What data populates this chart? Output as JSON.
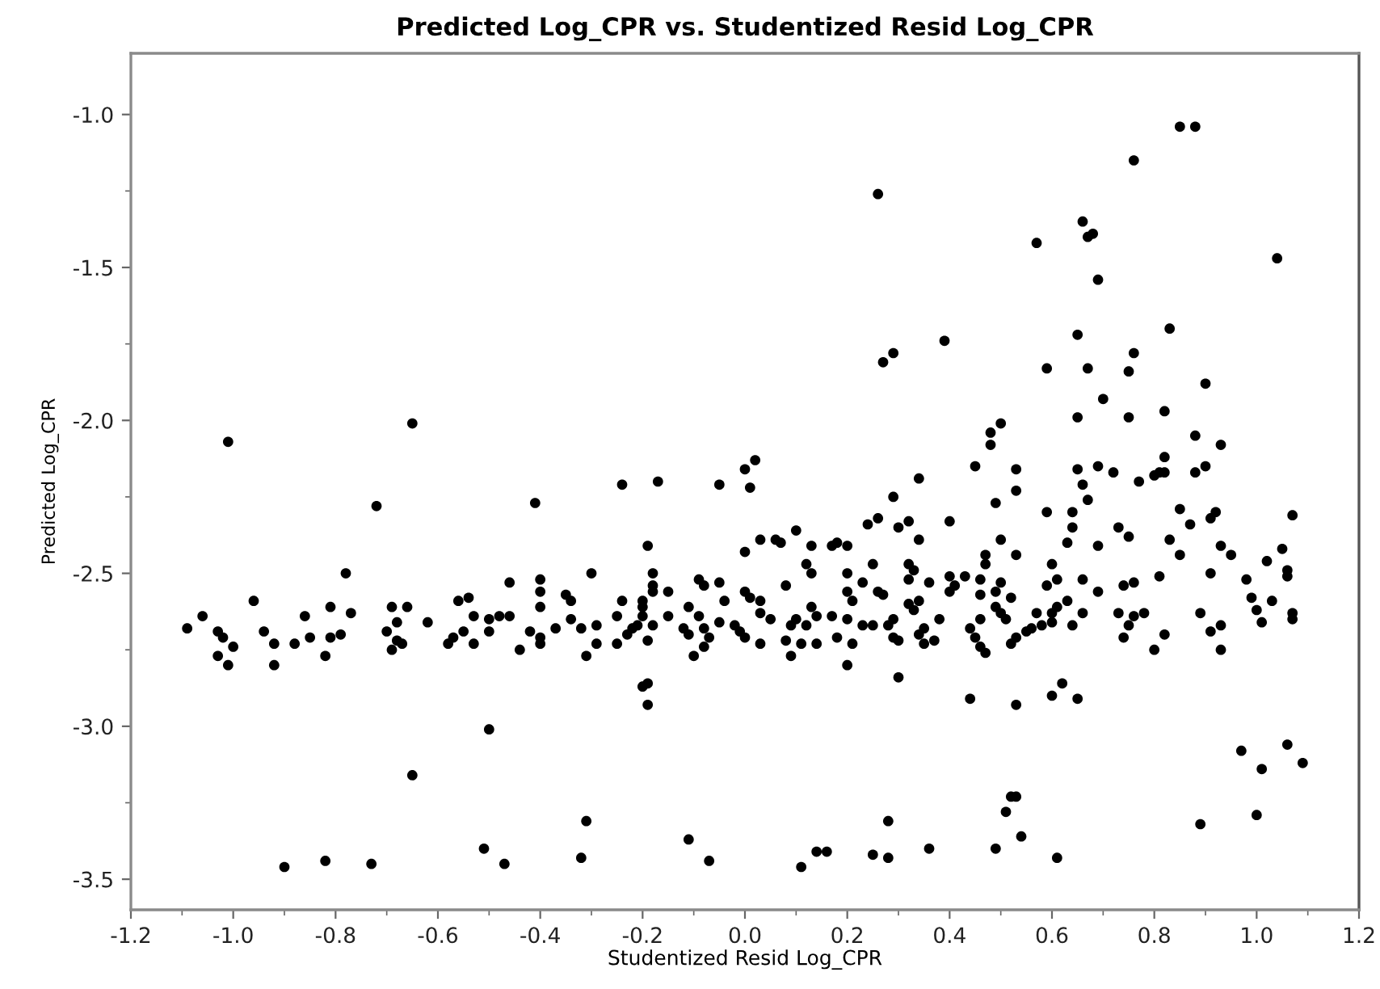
{
  "chart_data": {
    "type": "scatter",
    "title": "Predicted Log_CPR vs. Studentized Resid Log_CPR",
    "xlabel": "Studentized Resid Log_CPR",
    "ylabel": "Predicted Log_CPR",
    "color": "#000000",
    "marker": "circle",
    "xlim": [
      -1.2,
      1.2
    ],
    "ylim": [
      -3.6,
      -0.8
    ],
    "xticks": [
      {
        "value": -1.2,
        "label": "-1.2"
      },
      {
        "value": -1.1,
        "label": null
      },
      {
        "value": -1.0,
        "label": "-1.0"
      },
      {
        "value": -0.9,
        "label": null
      },
      {
        "value": -0.8,
        "label": "-0.8"
      },
      {
        "value": -0.7,
        "label": null
      },
      {
        "value": -0.6,
        "label": "-0.6"
      },
      {
        "value": -0.5,
        "label": null
      },
      {
        "value": -0.4,
        "label": "-0.4"
      },
      {
        "value": -0.3,
        "label": null
      },
      {
        "value": -0.2,
        "label": "-0.2"
      },
      {
        "value": -0.1,
        "label": null
      },
      {
        "value": 0.0,
        "label": "0.0"
      },
      {
        "value": 0.1,
        "label": null
      },
      {
        "value": 0.2,
        "label": "0.2"
      },
      {
        "value": 0.3,
        "label": null
      },
      {
        "value": 0.4,
        "label": "0.4"
      },
      {
        "value": 0.5,
        "label": null
      },
      {
        "value": 0.6,
        "label": "0.6"
      },
      {
        "value": 0.7,
        "label": null
      },
      {
        "value": 0.8,
        "label": "0.8"
      },
      {
        "value": 0.9,
        "label": null
      },
      {
        "value": 1.0,
        "label": "1.0"
      },
      {
        "value": 1.1,
        "label": null
      },
      {
        "value": 1.2,
        "label": "1.2"
      }
    ],
    "yticks": [
      {
        "value": -3.5,
        "label": "-3.5"
      },
      {
        "value": -3.25,
        "label": null
      },
      {
        "value": -3.0,
        "label": "-3.0"
      },
      {
        "value": -2.75,
        "label": null
      },
      {
        "value": -2.5,
        "label": "-2.5"
      },
      {
        "value": -2.25,
        "label": null
      },
      {
        "value": -2.0,
        "label": "-2.0"
      },
      {
        "value": -1.75,
        "label": null
      },
      {
        "value": -1.5,
        "label": "-1.5"
      },
      {
        "value": -1.25,
        "label": null
      },
      {
        "value": -1.0,
        "label": "-1.0"
      }
    ],
    "x": [
      -1.01,
      -0.65,
      -0.72,
      -0.78,
      -0.96,
      -1.09,
      -1.06,
      -1.03,
      -1.02,
      -1.0,
      -1.03,
      -1.01,
      -0.94,
      -0.92,
      -0.92,
      -0.88,
      -0.86,
      -0.85,
      -0.81,
      -0.81,
      -0.82,
      -0.79,
      -0.77,
      -0.69,
      -0.66,
      -0.68,
      -0.7,
      -0.68,
      -0.69,
      -0.67,
      -0.62,
      -0.58,
      -0.57,
      -0.56,
      -0.54,
      -0.55,
      -0.53,
      -0.53,
      -0.5,
      -0.5,
      -0.48,
      -0.46,
      -0.46,
      -0.5,
      -0.65,
      -0.9,
      -0.82,
      -0.73,
      -0.51,
      -0.47,
      0.26,
      0.27,
      0.29,
      -0.41,
      -0.24,
      -0.17,
      -0.05,
      0.0,
      0.02,
      0.01,
      0.29,
      0.26,
      0.24,
      0.3,
      0.1,
      0.03,
      0.06,
      0.07,
      0.0,
      0.13,
      0.17,
      0.18,
      0.2,
      -0.19,
      0.25,
      0.12,
      0.13,
      0.08,
      -0.18,
      -0.18,
      -0.3,
      -0.4,
      -0.4,
      -0.35,
      -0.34,
      -0.4,
      -0.42,
      -0.4,
      -0.4,
      -0.37,
      -0.44,
      -0.34,
      -0.32,
      -0.29,
      -0.29,
      -0.31,
      -0.25,
      -0.24,
      -0.25,
      -0.23,
      -0.22,
      -0.2,
      -0.2,
      -0.2,
      -0.19,
      -0.18,
      -0.18,
      -0.15,
      -0.15,
      -0.12,
      -0.11,
      -0.11,
      -0.1,
      -0.09,
      -0.08,
      -0.09,
      -0.08,
      -0.08,
      -0.07,
      -0.05,
      -0.05,
      -0.04,
      -0.02,
      -0.01,
      0.0,
      0.0,
      0.01,
      0.03,
      0.03,
      0.03,
      0.05,
      0.09,
      0.08,
      0.09,
      0.1,
      0.11,
      0.13,
      0.14,
      0.14,
      0.12,
      0.17,
      0.18,
      0.2,
      0.2,
      0.2,
      0.21,
      0.21,
      0.2,
      0.23,
      0.23,
      0.25,
      0.26,
      0.27,
      0.28,
      0.29,
      0.3,
      -0.31,
      -0.32,
      -0.11,
      -0.07,
      0.11,
      0.14,
      0.16,
      0.25,
      0.28,
      0.28,
      -0.2,
      -0.19,
      -0.19,
      -0.21,
      0.85,
      0.88,
      0.76,
      0.66,
      0.67,
      0.68,
      0.57,
      1.04,
      0.69,
      0.83,
      0.65,
      0.39,
      0.76,
      0.59,
      0.67,
      0.75,
      0.9,
      0.7,
      0.65,
      0.75,
      0.82,
      0.5,
      0.48,
      0.48,
      0.88,
      0.93,
      0.45,
      0.53,
      0.34,
      0.53,
      0.49,
      0.65,
      0.69,
      0.72,
      0.66,
      0.67,
      0.59,
      0.64,
      0.77,
      0.8,
      0.81,
      0.82,
      0.82,
      0.88,
      0.9,
      0.85,
      0.92,
      1.07,
      0.32,
      0.34,
      0.4,
      0.5,
      0.53,
      0.64,
      0.63,
      0.69,
      0.73,
      0.75,
      0.87,
      0.91,
      0.93,
      0.83,
      0.85,
      0.95,
      1.02,
      1.05,
      1.06,
      1.06,
      0.98,
      0.91,
      0.81,
      0.99,
      1.03,
      1.0,
      1.01,
      1.07,
      1.07,
      0.89,
      0.91,
      0.93,
      0.93,
      0.82,
      0.8,
      0.78,
      0.76,
      0.75,
      0.74,
      0.73,
      0.74,
      0.76,
      0.69,
      0.66,
      0.66,
      0.64,
      0.63,
      0.61,
      0.6,
      0.61,
      0.6,
      0.59,
      0.6,
      0.58,
      0.56,
      0.55,
      0.57,
      0.53,
      0.52,
      0.51,
      0.5,
      0.49,
      0.52,
      0.5,
      0.49,
      0.47,
      0.47,
      0.46,
      0.46,
      0.46,
      0.44,
      0.45,
      0.46,
      0.47,
      0.43,
      0.41,
      0.4,
      0.4,
      0.38,
      0.37,
      0.35,
      0.35,
      0.34,
      0.33,
      0.34,
      0.32,
      0.32,
      0.33,
      0.32,
      0.36,
      0.29,
      0.3,
      0.44,
      0.53,
      0.6,
      0.62,
      0.65,
      0.97,
      1.01,
      1.06,
      1.09,
      1.0,
      0.89,
      0.52,
      0.53,
      0.51,
      0.54,
      0.49,
      0.61,
      0.36
    ],
    "values": [
      -2.07,
      -2.01,
      -2.28,
      -2.5,
      -2.59,
      -2.68,
      -2.64,
      -2.69,
      -2.71,
      -2.74,
      -2.77,
      -2.8,
      -2.69,
      -2.73,
      -2.8,
      -2.73,
      -2.64,
      -2.71,
      -2.61,
      -2.71,
      -2.77,
      -2.7,
      -2.63,
      -2.61,
      -2.61,
      -2.66,
      -2.69,
      -2.72,
      -2.75,
      -2.73,
      -2.66,
      -2.73,
      -2.71,
      -2.59,
      -2.58,
      -2.69,
      -2.64,
      -2.73,
      -2.69,
      -2.65,
      -2.64,
      -2.53,
      -2.64,
      -3.01,
      -3.16,
      -3.46,
      -3.44,
      -3.45,
      -3.4,
      -3.45,
      -1.26,
      -1.81,
      -1.78,
      -2.27,
      -2.21,
      -2.2,
      -2.21,
      -2.16,
      -2.13,
      -2.22,
      -2.25,
      -2.32,
      -2.34,
      -2.35,
      -2.36,
      -2.39,
      -2.39,
      -2.4,
      -2.43,
      -2.41,
      -2.41,
      -2.4,
      -2.41,
      -2.41,
      -2.47,
      -2.47,
      -2.5,
      -2.54,
      -2.5,
      -2.54,
      -2.5,
      -2.52,
      -2.56,
      -2.57,
      -2.59,
      -2.61,
      -2.69,
      -2.71,
      -2.73,
      -2.68,
      -2.75,
      -2.65,
      -2.68,
      -2.67,
      -2.73,
      -2.77,
      -2.73,
      -2.59,
      -2.64,
      -2.7,
      -2.68,
      -2.59,
      -2.61,
      -2.64,
      -2.72,
      -2.67,
      -2.56,
      -2.56,
      -2.64,
      -2.68,
      -2.7,
      -2.61,
      -2.77,
      -2.52,
      -2.54,
      -2.64,
      -2.68,
      -2.74,
      -2.71,
      -2.66,
      -2.53,
      -2.59,
      -2.67,
      -2.69,
      -2.71,
      -2.56,
      -2.58,
      -2.73,
      -2.59,
      -2.63,
      -2.65,
      -2.67,
      -2.72,
      -2.77,
      -2.65,
      -2.73,
      -2.61,
      -2.64,
      -2.73,
      -2.67,
      -2.64,
      -2.71,
      -2.65,
      -2.5,
      -2.56,
      -2.59,
      -2.73,
      -2.8,
      -2.53,
      -2.67,
      -2.67,
      -2.56,
      -2.57,
      -2.67,
      -2.65,
      -2.84,
      -3.31,
      -3.43,
      -3.37,
      -3.44,
      -3.46,
      -3.41,
      -3.41,
      -3.42,
      -3.43,
      -3.31,
      -2.87,
      -2.86,
      -2.93,
      -2.67,
      -1.04,
      -1.04,
      -1.15,
      -1.35,
      -1.4,
      -1.39,
      -1.42,
      -1.47,
      -1.54,
      -1.7,
      -1.72,
      -1.74,
      -1.78,
      -1.83,
      -1.83,
      -1.84,
      -1.88,
      -1.93,
      -1.99,
      -1.99,
      -1.97,
      -2.01,
      -2.04,
      -2.08,
      -2.05,
      -2.08,
      -2.15,
      -2.16,
      -2.19,
      -2.23,
      -2.27,
      -2.16,
      -2.15,
      -2.17,
      -2.21,
      -2.26,
      -2.3,
      -2.3,
      -2.2,
      -2.18,
      -2.17,
      -2.17,
      -2.12,
      -2.17,
      -2.15,
      -2.29,
      -2.3,
      -2.31,
      -2.33,
      -2.39,
      -2.33,
      -2.39,
      -2.44,
      -2.35,
      -2.4,
      -2.41,
      -2.35,
      -2.38,
      -2.34,
      -2.32,
      -2.41,
      -2.39,
      -2.44,
      -2.44,
      -2.46,
      -2.42,
      -2.49,
      -2.51,
      -2.52,
      -2.5,
      -2.51,
      -2.58,
      -2.59,
      -2.62,
      -2.66,
      -2.63,
      -2.65,
      -2.63,
      -2.69,
      -2.67,
      -2.75,
      -2.7,
      -2.75,
      -2.63,
      -2.64,
      -2.67,
      -2.71,
      -2.63,
      -2.54,
      -2.53,
      -2.56,
      -2.52,
      -2.63,
      -2.67,
      -2.59,
      -2.52,
      -2.47,
      -2.61,
      -2.63,
      -2.54,
      -2.66,
      -2.67,
      -2.68,
      -2.69,
      -2.63,
      -2.71,
      -2.73,
      -2.65,
      -2.63,
      -2.61,
      -2.58,
      -2.53,
      -2.56,
      -2.44,
      -2.47,
      -2.52,
      -2.57,
      -2.65,
      -2.68,
      -2.71,
      -2.74,
      -2.76,
      -2.51,
      -2.54,
      -2.51,
      -2.56,
      -2.65,
      -2.72,
      -2.73,
      -2.68,
      -2.7,
      -2.62,
      -2.59,
      -2.6,
      -2.47,
      -2.49,
      -2.52,
      -2.53,
      -2.71,
      -2.72,
      -2.91,
      -2.93,
      -2.9,
      -2.86,
      -2.91,
      -3.08,
      -3.14,
      -3.06,
      -3.12,
      -3.29,
      -3.32,
      -3.23,
      -3.23,
      -3.28,
      -3.36,
      -3.4,
      -3.43,
      -3.4
    ]
  }
}
